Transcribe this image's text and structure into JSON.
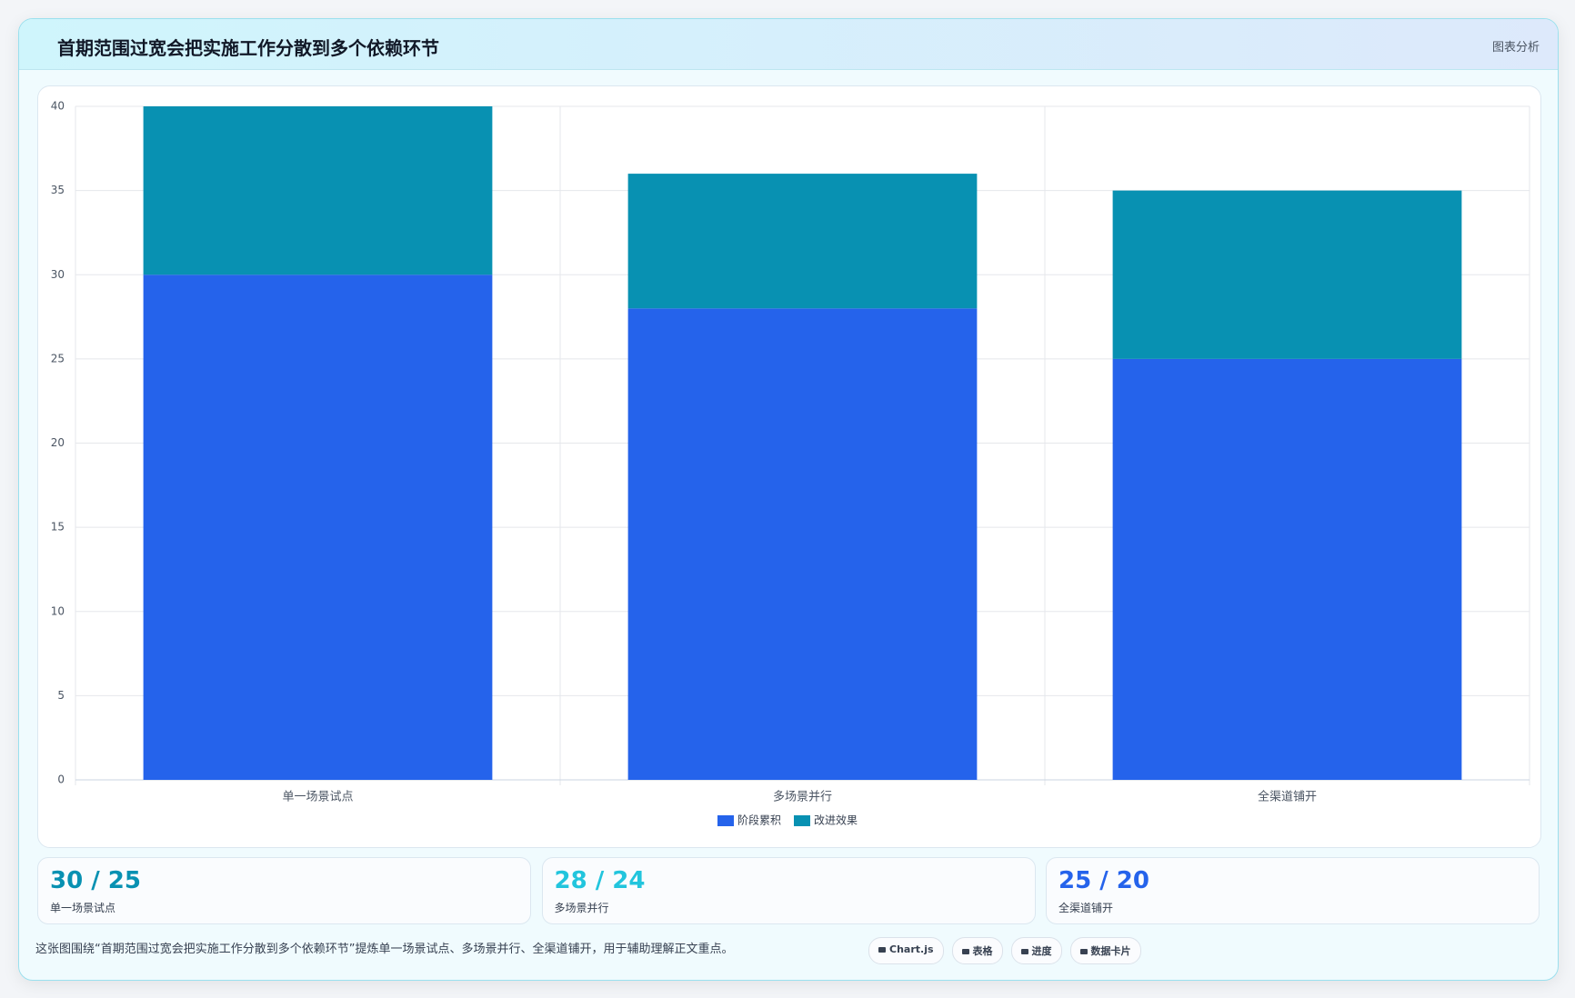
{
  "header": {
    "title": "首期范围过宽会把实施工作分散到多个依赖环节",
    "tag": "图表分析"
  },
  "chart_data": {
    "type": "bar",
    "stacked": true,
    "categories": [
      "单一场景试点",
      "多场景并行",
      "全渠道铺开"
    ],
    "series": [
      {
        "name": "阶段累积",
        "color": "#2563eb",
        "values": [
          30,
          28,
          25
        ]
      },
      {
        "name": "改进效果",
        "color": "#0891b2",
        "values": [
          10,
          8,
          10
        ]
      }
    ],
    "ylim": [
      0,
      40
    ],
    "yticks": [
      0,
      5,
      10,
      15,
      20,
      25,
      30,
      35,
      40
    ],
    "grid": true,
    "legend": "bottom"
  },
  "stats": [
    {
      "value": "30 / 25",
      "label": "单一场景试点",
      "color": "#0891b2"
    },
    {
      "value": "28 / 24",
      "label": "多场景并行",
      "color": "#22c5dd"
    },
    {
      "value": "25 / 20",
      "label": "全渠道铺开",
      "color": "#2563eb"
    }
  ],
  "footer": {
    "text": "这张图围绕“首期范围过宽会把实施工作分散到多个依赖环节”提炼单一场景试点、多场景并行、全渠道铺开，用于辅助理解正文重点。",
    "chips": [
      "Chart.js",
      "表格",
      "进度",
      "数据卡片"
    ]
  }
}
